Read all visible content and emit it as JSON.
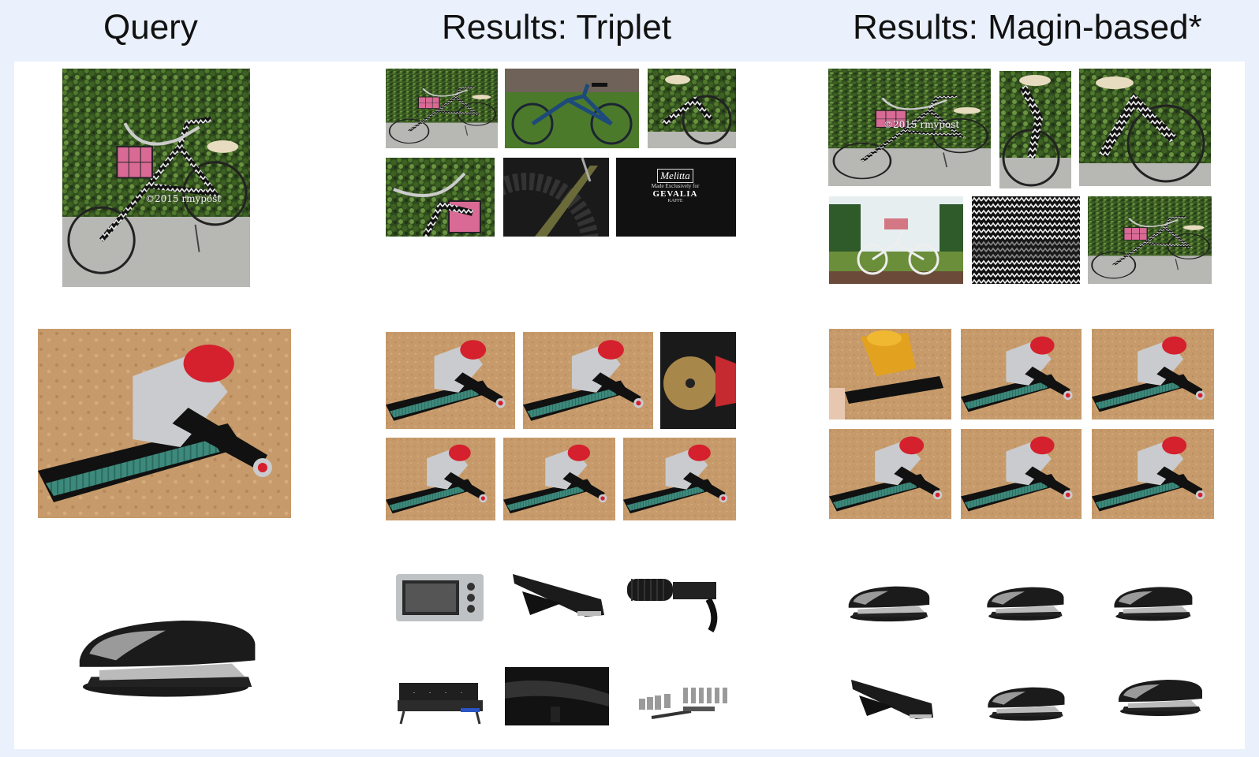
{
  "headers": {
    "query": "Query",
    "triplet": "Results: Triplet",
    "margin": "Results: Magin-based*"
  },
  "watermarks": {
    "rmypost": "©2015 rmypost"
  },
  "gevalia_logo": {
    "brand": "Melitta",
    "line": "Made Exclusively for",
    "name": "GEVALIA",
    "sub": "KAFFE"
  },
  "colors": {
    "page_background": "#eaf0fc",
    "panel_background": "#ffffff"
  }
}
